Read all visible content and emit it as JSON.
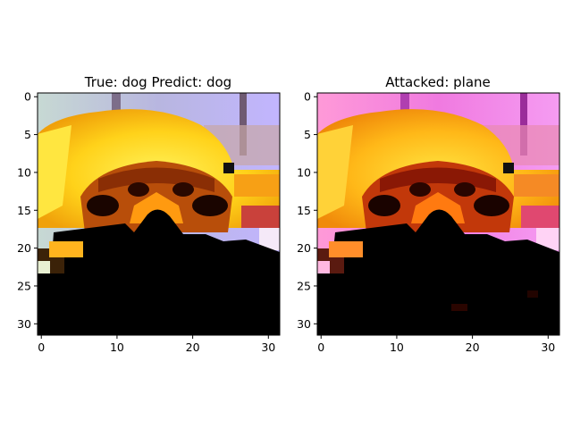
{
  "chart_data": [
    {
      "type": "image",
      "title": "True: dog  Predict: dog",
      "xlim": [
        -0.5,
        31.5
      ],
      "ylim": [
        31.5,
        -0.5
      ],
      "xticks": [
        0,
        10,
        20,
        30
      ],
      "yticks": [
        0,
        5,
        10,
        15,
        20,
        25,
        30
      ],
      "xtick_labels": [
        "0",
        "10",
        "20",
        "30"
      ],
      "ytick_labels": [
        "0",
        "5",
        "10",
        "15",
        "20",
        "25",
        "30"
      ]
    },
    {
      "type": "image",
      "title": "Attacked: plane",
      "xlim": [
        -0.5,
        31.5
      ],
      "ylim": [
        31.5,
        -0.5
      ],
      "xticks": [
        0,
        10,
        20,
        30
      ],
      "yticks": [
        0,
        5,
        10,
        15,
        20,
        25,
        30
      ],
      "xtick_labels": [
        "0",
        "10",
        "20",
        "30"
      ],
      "ytick_labels": [
        "0",
        "5",
        "10",
        "15",
        "20",
        "25",
        "30"
      ]
    }
  ]
}
